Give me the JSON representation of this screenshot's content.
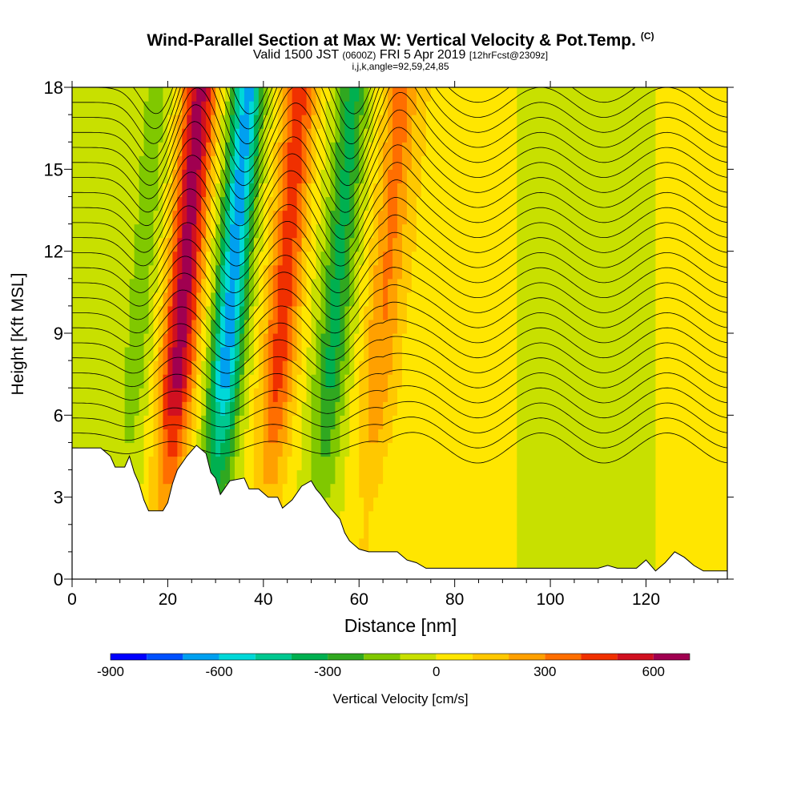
{
  "header": {
    "title": "Wind-Parallel Section at Max W: Vertical Velocity & Pot.Temp.",
    "title_suffix": "(C)",
    "subtitle_main": "Valid 1500 JST",
    "subtitle_utc": "(0600Z)",
    "subtitle_date": "FRI 5 Apr 2019",
    "subtitle_fcst": "[12hrFcst@2309z]",
    "subtitle2": "i,j,k,angle=92,59,24,85"
  },
  "chart_data": {
    "type": "heatmap",
    "title": "Wind-Parallel Section at Max W: Vertical Velocity & Pot.Temp.",
    "xlabel": "Distance [nm]",
    "ylabel": "Height [Kft MSL]",
    "xlim": [
      0,
      137
    ],
    "ylim": [
      0,
      18
    ],
    "xticks": [
      0,
      20,
      40,
      60,
      80,
      100,
      120
    ],
    "yticks": [
      0,
      3,
      6,
      9,
      12,
      15,
      18
    ],
    "colorbar": {
      "label": "Vertical Velocity [cm/s]",
      "ticks": [
        -900,
        -600,
        -300,
        0,
        300,
        600
      ],
      "bin_edges": [
        -900,
        -800,
        -700,
        -600,
        -500,
        -400,
        -300,
        -200,
        -100,
        0,
        100,
        200,
        300,
        400,
        500,
        600,
        700
      ],
      "colors": [
        "#0000ff",
        "#0050ff",
        "#00a0f0",
        "#00d8d8",
        "#00c890",
        "#00b050",
        "#30a820",
        "#80c800",
        "#c8e000",
        "#ffe600",
        "#ffc800",
        "#ffa000",
        "#ff6e00",
        "#f03000",
        "#d01020",
        "#a00050",
        "#700090"
      ]
    },
    "updraft_cores_nm": [
      {
        "x": 20,
        "peak_cms": 650
      },
      {
        "x": 41,
        "peak_cms": 450
      },
      {
        "x": 62,
        "peak_cms": 300
      }
    ],
    "downdraft_cores_nm": [
      {
        "x": 30,
        "peak_cms": -650
      },
      {
        "x": 52,
        "peak_cms": -330
      },
      {
        "x": 11,
        "peak_cms": -150
      }
    ],
    "terrain_kft": [
      [
        0,
        4.8
      ],
      [
        6,
        4.8
      ],
      [
        8,
        4.5
      ],
      [
        9,
        4.1
      ],
      [
        11,
        4.1
      ],
      [
        12,
        4.5
      ],
      [
        13,
        3.9
      ],
      [
        14,
        3.5
      ],
      [
        15,
        2.9
      ],
      [
        16,
        2.5
      ],
      [
        19,
        2.5
      ],
      [
        20,
        2.8
      ],
      [
        21,
        3.5
      ],
      [
        22,
        4.0
      ],
      [
        24,
        4.5
      ],
      [
        26,
        4.9
      ],
      [
        28,
        4.6
      ],
      [
        29,
        3.9
      ],
      [
        30,
        3.7
      ],
      [
        31,
        3.1
      ],
      [
        33,
        3.6
      ],
      [
        36,
        3.7
      ],
      [
        37,
        3.3
      ],
      [
        39,
        3.3
      ],
      [
        41,
        3.0
      ],
      [
        43,
        3.0
      ],
      [
        44,
        2.6
      ],
      [
        46,
        2.9
      ],
      [
        48,
        3.4
      ],
      [
        50,
        3.6
      ],
      [
        51,
        3.3
      ],
      [
        52,
        3.1
      ],
      [
        54,
        2.6
      ],
      [
        56,
        2.2
      ],
      [
        57,
        1.7
      ],
      [
        58,
        1.4
      ],
      [
        60,
        1.1
      ],
      [
        62,
        1.0
      ],
      [
        68,
        1.0
      ],
      [
        70,
        0.7
      ],
      [
        72,
        0.6
      ],
      [
        74,
        0.4
      ],
      [
        110,
        0.4
      ],
      [
        112,
        0.5
      ],
      [
        114,
        0.4
      ],
      [
        118,
        0.4
      ],
      [
        120,
        0.7
      ],
      [
        122,
        0.3
      ],
      [
        124,
        0.6
      ],
      [
        126,
        1.0
      ],
      [
        128,
        0.8
      ],
      [
        130,
        0.5
      ],
      [
        132,
        0.3
      ],
      [
        137,
        0.3
      ]
    ]
  }
}
